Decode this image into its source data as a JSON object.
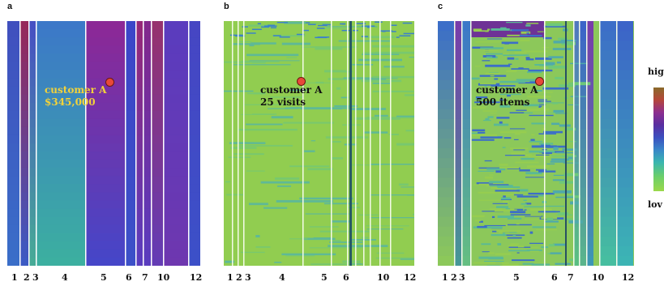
{
  "chart_data": [
    {
      "type": "heatmap",
      "panel": "a",
      "x_tick_labels": [
        "1",
        "2",
        "3",
        "4",
        "5",
        "6",
        "7",
        "10",
        "12"
      ],
      "annotation": {
        "lines": [
          "customer A",
          "$345,000"
        ],
        "color": "#f2d23a"
      },
      "palette": "blue-purple"
    },
    {
      "type": "heatmap",
      "panel": "b",
      "x_tick_labels": [
        "1",
        "2",
        "3",
        "4",
        "5",
        "6",
        "10",
        "12"
      ],
      "annotation": {
        "lines": [
          "customer A",
          "25 visits"
        ],
        "color": "#111111"
      },
      "palette": "green"
    },
    {
      "type": "heatmap",
      "panel": "c",
      "x_tick_labels": [
        "1",
        "2",
        "3",
        "5",
        "6",
        "7",
        "10",
        "12"
      ],
      "annotation": {
        "lines": [
          "customer A",
          "500 items"
        ],
        "color": "#111111"
      },
      "palette": "green-blue"
    }
  ],
  "legend": {
    "high_label": "hig",
    "low_label": "lov"
  },
  "colors": {
    "marker": "#e8493a",
    "separator": "#ffffff"
  }
}
